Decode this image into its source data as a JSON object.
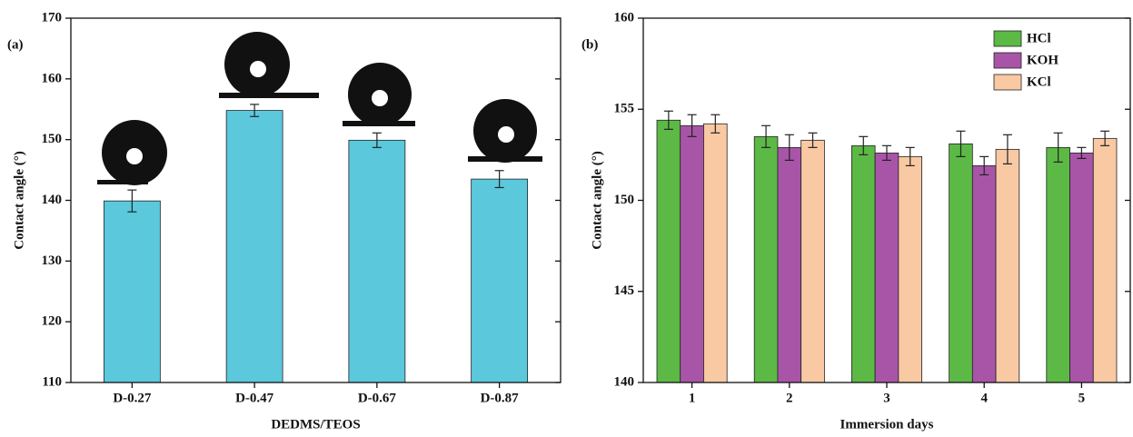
{
  "chart_data": [
    {
      "type": "bar",
      "panel_label": "(a)",
      "categories": [
        "D-0.27",
        "D-0.47",
        "D-0.67",
        "D-0.87"
      ],
      "values": [
        139.9,
        154.8,
        149.9,
        143.5
      ],
      "errors": [
        1.8,
        1.0,
        1.2,
        1.4
      ],
      "color": "#5bc8dc",
      "xlabel": "DEDMS/TEOS",
      "ylabel": "Contact angle (°)",
      "ylim": [
        110,
        170
      ],
      "yticks": [
        110,
        120,
        130,
        140,
        150,
        160,
        170
      ]
    },
    {
      "type": "bar",
      "panel_label": "(b)",
      "categories": [
        "1",
        "2",
        "3",
        "4",
        "5"
      ],
      "series": [
        {
          "name": "HCl",
          "color": "#5cb946",
          "values": [
            154.4,
            153.5,
            153.0,
            153.1,
            152.9
          ],
          "errors": [
            0.5,
            0.6,
            0.5,
            0.7,
            0.8
          ]
        },
        {
          "name": "KOH",
          "color": "#a855a8",
          "values": [
            154.1,
            152.9,
            152.6,
            151.9,
            152.6
          ],
          "errors": [
            0.6,
            0.7,
            0.4,
            0.5,
            0.3
          ]
        },
        {
          "name": "KCl",
          "color": "#f9c9a4",
          "values": [
            154.2,
            153.3,
            152.4,
            152.8,
            153.4
          ],
          "errors": [
            0.5,
            0.4,
            0.5,
            0.8,
            0.4
          ]
        }
      ],
      "xlabel": "Immersion days",
      "ylabel": "Contact angle (°)",
      "ylim": [
        140,
        160
      ],
      "yticks": [
        140,
        145,
        150,
        155,
        160
      ],
      "legend": "upper right"
    }
  ]
}
